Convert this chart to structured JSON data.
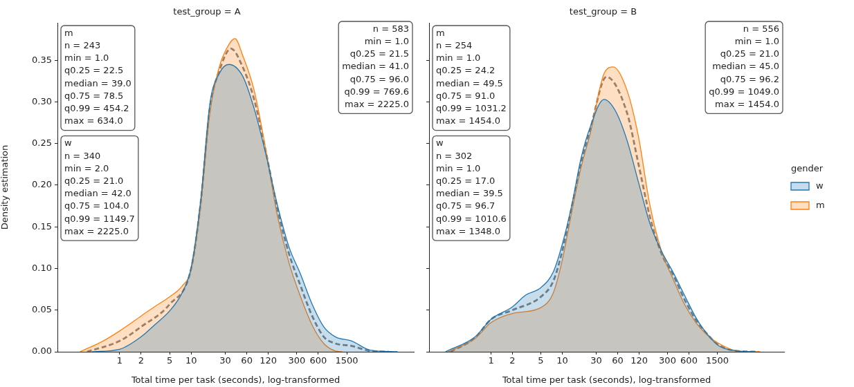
{
  "chart_data": [
    {
      "type": "area",
      "title": "test_group = A",
      "xlabel": "Total time per task (seconds), log-transformed",
      "ylabel": "Density estimation",
      "log": "x",
      "xlim": [
        0.135,
        13000
      ],
      "xticks": [
        1,
        2,
        5,
        10,
        30,
        60,
        120,
        300,
        600,
        1500
      ],
      "ylim": [
        0,
        0.395
      ],
      "yticks": [
        {
          "value": 0,
          "label": "0.00"
        },
        {
          "value": 0.05,
          "label": "0.05"
        },
        {
          "value": 0.1,
          "label": "0.10"
        },
        {
          "value": 0.15,
          "label": "0.15"
        },
        {
          "value": 0.2,
          "label": "0.20"
        },
        {
          "value": 0.25,
          "label": "0.25"
        },
        {
          "value": 0.3,
          "label": "0.30"
        },
        {
          "value": 0.35,
          "label": "0.35"
        }
      ],
      "annotations": [
        "m\nn = 243\nmin = 1.0\nq0.25 = 22.5\nmedian = 39.0\nq0.75 = 78.5\nq0.99 = 454.2\nmax = 634.0",
        "w\nn = 340\nmin = 2.0\nq0.25 = 21.0\nmedian = 42.0\nq0.75 = 104.0\nq0.99 = 1149.7\nmax = 2225.0",
        "n = 583\nmin = 1.0\nq0.25 = 21.5\nmedian = 41.0\nq0.75 = 96.0\nq0.99 = 769.6\nmax = 2225.0"
      ],
      "series": [
        {
          "color": "#1f77b4",
          "x": [
            0.41,
            1,
            2,
            3.06,
            5,
            7.5,
            10,
            13.6,
            18.3,
            24.7,
            33.6,
            52.5,
            76,
            111,
            161,
            233,
            339,
            492,
            715,
            1037,
            1750,
            3180,
            7710
          ],
          "values": [
            0,
            0.003,
            0.018,
            0.032,
            0.049,
            0.071,
            0.101,
            0.182,
            0.298,
            0.334,
            0.345,
            0.331,
            0.292,
            0.237,
            0.176,
            0.126,
            0.093,
            0.057,
            0.03,
            0.018,
            0.013,
            0.002,
            0
          ]
        },
        {
          "color": "#ff7f0e",
          "x": [
            0.28,
            0.59,
            1,
            2,
            3.06,
            5,
            7.5,
            10,
            13.6,
            18.3,
            24.7,
            30,
            41,
            52.5,
            76,
            111,
            161,
            233,
            339,
            492,
            715,
            1037,
            1300
          ],
          "values": [
            0,
            0.013,
            0.025,
            0.043,
            0.054,
            0.066,
            0.079,
            0.099,
            0.176,
            0.287,
            0.342,
            0.361,
            0.376,
            0.356,
            0.314,
            0.242,
            0.163,
            0.107,
            0.066,
            0.032,
            0.01,
            0.001,
            0
          ]
        },
        {
          "type": "line",
          "line_style": "dashed",
          "color": "#7f7f7f",
          "x": [
            0.35,
            1,
            2,
            5,
            10,
            13.6,
            18.3,
            24.7,
            36,
            52.5,
            76,
            111,
            161,
            233,
            339,
            492,
            715,
            1037,
            1750,
            3180,
            5760
          ],
          "values": [
            0,
            0.013,
            0.03,
            0.057,
            0.1,
            0.179,
            0.293,
            0.337,
            0.364,
            0.342,
            0.303,
            0.24,
            0.171,
            0.118,
            0.079,
            0.043,
            0.018,
            0.01,
            0.007,
            0.001,
            0
          ]
        }
      ]
    },
    {
      "type": "area",
      "title": "test_group = B",
      "xlabel": "Total time per task (seconds), log-transformed",
      "log": "x",
      "tick_labels": "x",
      "legend": "right",
      "legend_title": "gender",
      "xlim": [
        0.135,
        13000
      ],
      "xticks": [
        1,
        2,
        5,
        10,
        30,
        60,
        120,
        300,
        600,
        1500
      ],
      "ylim": [
        0,
        0.395
      ],
      "yticks": [
        {
          "value": 0,
          "label": null
        },
        {
          "value": 0.05,
          "label": null
        },
        {
          "value": 0.1,
          "label": null
        },
        {
          "value": 0.15,
          "label": null
        },
        {
          "value": 0.2,
          "label": null
        },
        {
          "value": 0.25,
          "label": null
        },
        {
          "value": 0.3,
          "label": null
        },
        {
          "value": 0.35,
          "label": null
        }
      ],
      "annotations": [
        "m\nn = 254\nmin = 1.0\nq0.25 = 24.2\nmedian = 49.5\nq0.75 = 91.0\nq0.99 = 1031.2\nmax = 1454.0",
        "w\nn = 302\nmin = 1.0\nq0.25 = 17.0\nmedian = 39.5\nq0.75 = 96.7\nq0.99 = 1010.6\nmax = 1348.0",
        "n = 556\nmin = 1.0\nq0.25 = 21.0\nmedian = 45.0\nq0.75 = 96.2\nq0.99 = 1049.0\nmax = 1454.0"
      ],
      "series": [
        {
          "name": "w",
          "color": "#1f77b4",
          "x": [
            0.23,
            0.6,
            1,
            2,
            3.06,
            5,
            7.5,
            10,
            13.6,
            18.3,
            24.7,
            38.6,
            56,
            81,
            117,
            170,
            247,
            357,
            519,
            752,
            1088,
            1578,
            2860,
            5170
          ],
          "values": [
            0,
            0.018,
            0.039,
            0.054,
            0.068,
            0.077,
            0.096,
            0.129,
            0.176,
            0.232,
            0.27,
            0.303,
            0.289,
            0.254,
            0.204,
            0.154,
            0.121,
            0.096,
            0.068,
            0.041,
            0.021,
            0.007,
            0.001,
            0
          ]
        },
        {
          "name": "m",
          "color": "#ff7f0e",
          "x": [
            0.25,
            0.6,
            1,
            2,
            5,
            7.5,
            10,
            13.6,
            18.3,
            24.7,
            38.6,
            52,
            81,
            117,
            170,
            247,
            357,
            519,
            752,
            1088,
            1578,
            2860,
            6010
          ],
          "values": [
            0,
            0.016,
            0.035,
            0.046,
            0.053,
            0.071,
            0.11,
            0.168,
            0.221,
            0.262,
            0.334,
            0.342,
            0.314,
            0.259,
            0.176,
            0.121,
            0.088,
            0.057,
            0.035,
            0.02,
            0.01,
            0.001,
            0
          ]
        },
        {
          "type": "line",
          "line_style": "dashed",
          "color": "#7f7f7f",
          "x": [
            0.27,
            0.6,
            1,
            2,
            5,
            7.5,
            10,
            13.6,
            18.3,
            24.7,
            41.6,
            81,
            117,
            170,
            247,
            357,
            519,
            752,
            1088,
            1578,
            2860,
            5600
          ],
          "values": [
            0,
            0.017,
            0.039,
            0.05,
            0.066,
            0.085,
            0.121,
            0.174,
            0.226,
            0.267,
            0.33,
            0.287,
            0.226,
            0.162,
            0.118,
            0.093,
            0.063,
            0.038,
            0.021,
            0.008,
            0.001,
            0
          ]
        }
      ]
    }
  ]
}
